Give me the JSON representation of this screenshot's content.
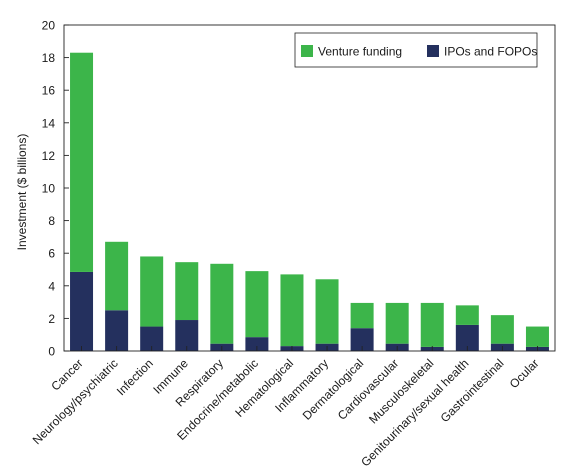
{
  "chart_data": {
    "type": "bar",
    "stacked": true,
    "ylabel": "Investment ($ billions)",
    "ylim": [
      0,
      20
    ],
    "yticks": [
      0,
      2,
      4,
      6,
      8,
      10,
      12,
      14,
      16,
      18,
      20
    ],
    "grid": false,
    "legend_position": "top-right",
    "categories": [
      "Cancer",
      "Neurology/psychiatric",
      "Infection",
      "Immune",
      "Respiratory",
      "Endocrine/metabolic",
      "Hematological",
      "Inflammatory",
      "Dermatological",
      "Cardiovascular",
      "Musculoskeletal",
      "Genitourinary/sexual health",
      "Gastrointestinal",
      "Ocular"
    ],
    "series": [
      {
        "name": "IPOs and FOPOs",
        "color": "#24305e",
        "values": [
          4.85,
          2.5,
          1.5,
          1.9,
          0.45,
          0.85,
          0.3,
          0.45,
          1.4,
          0.45,
          0.25,
          1.6,
          0.45,
          0.25
        ]
      },
      {
        "name": "Venture funding",
        "color": "#3cb54a",
        "values": [
          13.45,
          4.2,
          4.3,
          3.55,
          4.9,
          4.05,
          4.4,
          3.95,
          1.55,
          2.5,
          2.7,
          1.2,
          1.75,
          1.25
        ]
      }
    ],
    "legend_order": [
      "Venture funding",
      "IPOs and FOPOs"
    ]
  }
}
